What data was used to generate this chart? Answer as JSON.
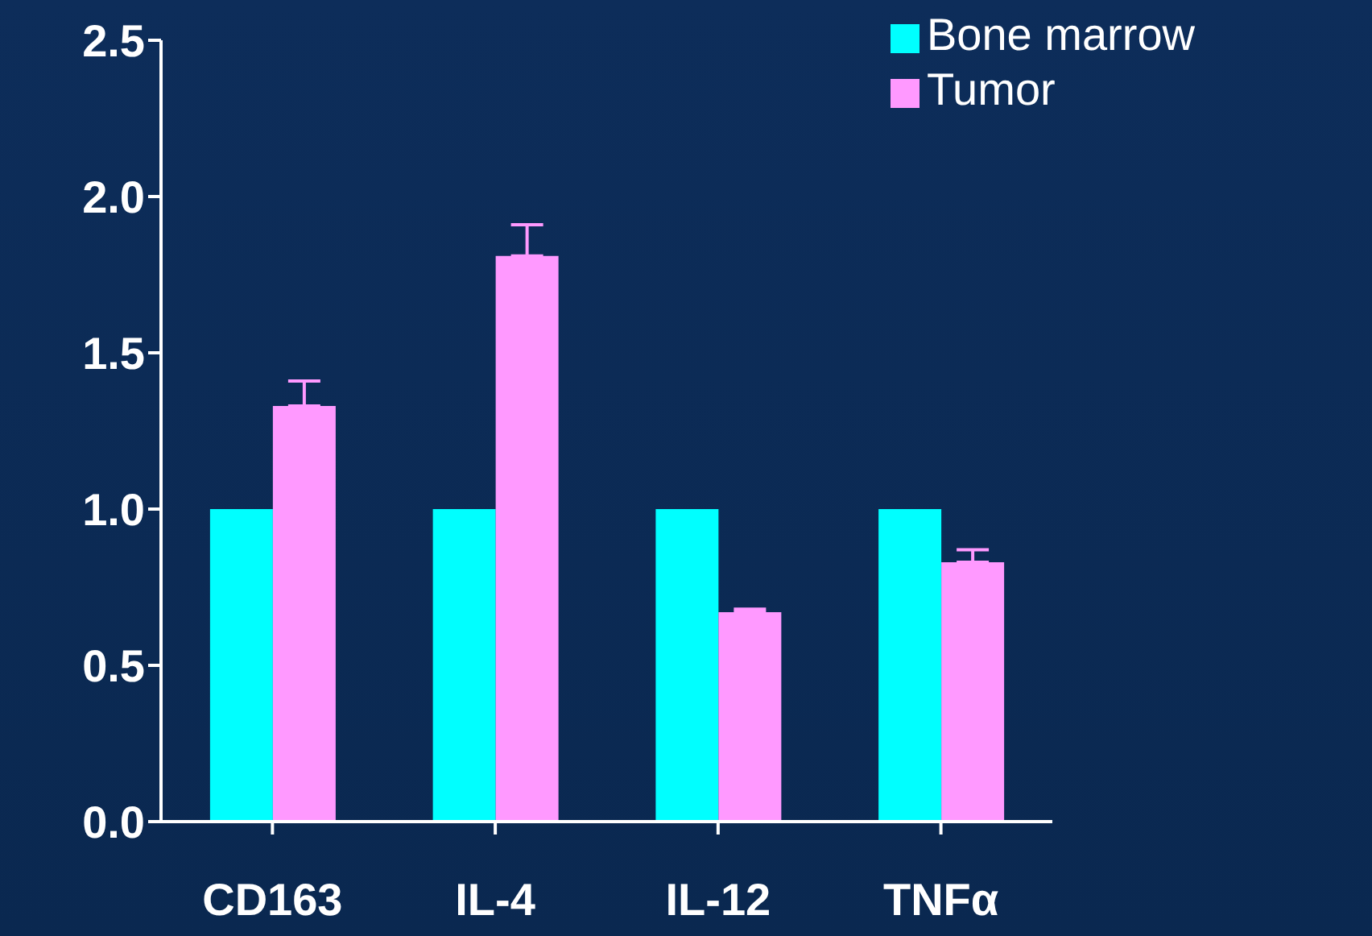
{
  "chart_data": {
    "type": "bar",
    "categories": [
      "CD163",
      "IL-4",
      "IL-12",
      "TNFα"
    ],
    "series": [
      {
        "name": "Bone marrow",
        "color": "#00ffff",
        "values": [
          1.0,
          1.0,
          1.0,
          1.0
        ]
      },
      {
        "name": "Tumor",
        "color": "#ff99ff",
        "values": [
          1.33,
          1.81,
          0.67,
          0.83
        ],
        "errors": [
          [
            1.33,
            1.41
          ],
          [
            1.81,
            1.91
          ],
          [
            0.67,
            0.68
          ],
          [
            0.83,
            0.87
          ]
        ]
      }
    ],
    "ylim": [
      0,
      2.5
    ],
    "yticks": [
      {
        "value": 0,
        "label": "0.0"
      },
      0.5,
      {
        "value": 1,
        "label": "1.0"
      },
      1.5,
      {
        "value": 2,
        "label": "2.0"
      },
      2.5
    ],
    "grid": false,
    "legend": "top right"
  }
}
